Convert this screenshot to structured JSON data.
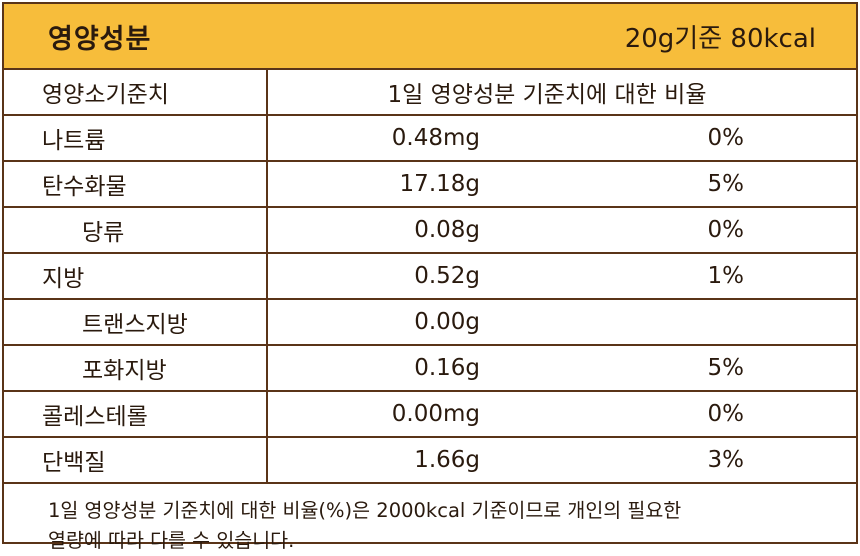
{
  "header": {
    "title": "영양성분",
    "serving": "20g기준 80kcal"
  },
  "table": {
    "col_name": "영양소기준치",
    "col_ratio": "1일 영양성분 기준치에 대한 비율",
    "rows": [
      {
        "name": "나트륨",
        "amount": "0.48mg",
        "pct": "0%"
      },
      {
        "name": "탄수화물",
        "amount": "17.18g",
        "pct": "5%"
      },
      {
        "name": "당류",
        "amount": "0.08g",
        "pct": "0%"
      },
      {
        "name": "지방",
        "amount": "0.52g",
        "pct": "1%"
      },
      {
        "name": "트랜스지방",
        "amount": "0.00g",
        "pct": ""
      },
      {
        "name": "포화지방",
        "amount": "0.16g",
        "pct": "5%"
      },
      {
        "name": "콜레스테롤",
        "amount": "0.00mg",
        "pct": "0%"
      },
      {
        "name": "단백질",
        "amount": "1.66g",
        "pct": "3%"
      }
    ]
  },
  "footnote": {
    "line1": "1일 영양성분 기준치에 대한 비율(%)은 2000kcal 기준이므로 개인의 필요한",
    "line2": "열량에 따라 다를 수 있습니다."
  }
}
